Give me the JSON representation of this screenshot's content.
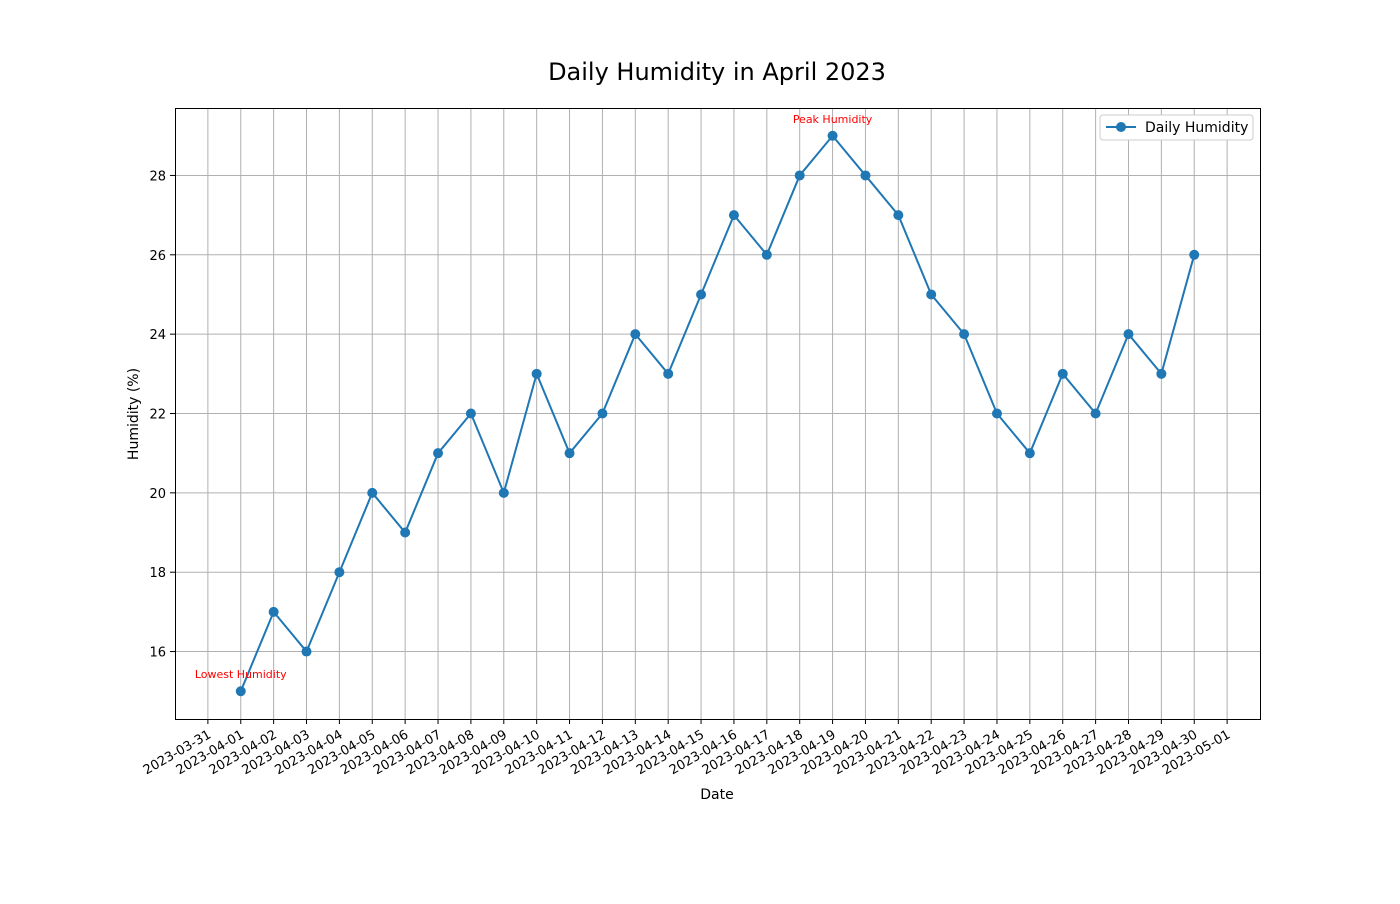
{
  "chart_data": {
    "type": "line",
    "title": "Daily Humidity in April 2023",
    "xlabel": "Date",
    "ylabel": "Humidity (%)",
    "x_tick_labels": [
      "2023-03-31",
      "2023-04-01",
      "2023-04-02",
      "2023-04-03",
      "2023-04-04",
      "2023-04-05",
      "2023-04-06",
      "2023-04-07",
      "2023-04-08",
      "2023-04-09",
      "2023-04-10",
      "2023-04-11",
      "2023-04-12",
      "2023-04-13",
      "2023-04-14",
      "2023-04-15",
      "2023-04-16",
      "2023-04-17",
      "2023-04-18",
      "2023-04-19",
      "2023-04-20",
      "2023-04-21",
      "2023-04-22",
      "2023-04-23",
      "2023-04-24",
      "2023-04-25",
      "2023-04-26",
      "2023-04-27",
      "2023-04-28",
      "2023-04-29",
      "2023-04-30",
      "2023-05-01"
    ],
    "y_ticks": [
      16,
      18,
      20,
      22,
      24,
      26,
      28
    ],
    "xlim": [
      "2023-03-30",
      "2023-05-02"
    ],
    "ylim": [
      14.3,
      29.7
    ],
    "grid": true,
    "legend_position": "upper right",
    "series": [
      {
        "name": "Daily Humidity",
        "color": "#1f77b4",
        "marker": "circle",
        "x": [
          "2023-04-01",
          "2023-04-02",
          "2023-04-03",
          "2023-04-04",
          "2023-04-05",
          "2023-04-06",
          "2023-04-07",
          "2023-04-08",
          "2023-04-09",
          "2023-04-10",
          "2023-04-11",
          "2023-04-12",
          "2023-04-13",
          "2023-04-14",
          "2023-04-15",
          "2023-04-16",
          "2023-04-17",
          "2023-04-18",
          "2023-04-19",
          "2023-04-20",
          "2023-04-21",
          "2023-04-22",
          "2023-04-23",
          "2023-04-24",
          "2023-04-25",
          "2023-04-26",
          "2023-04-27",
          "2023-04-28",
          "2023-04-29",
          "2023-04-30"
        ],
        "values": [
          15,
          17,
          16,
          18,
          20,
          19,
          21,
          22,
          20,
          23,
          21,
          22,
          24,
          23,
          25,
          27,
          26,
          28,
          29,
          28,
          27,
          25,
          24,
          22,
          21,
          23,
          22,
          24,
          23,
          26
        ]
      }
    ],
    "annotations": [
      {
        "text": "Peak Humidity",
        "x": "2023-04-19",
        "y": 29,
        "color": "#ff0000"
      },
      {
        "text": "Lowest Humidity",
        "x": "2023-04-01",
        "y": 15,
        "color": "#ff0000"
      }
    ]
  }
}
